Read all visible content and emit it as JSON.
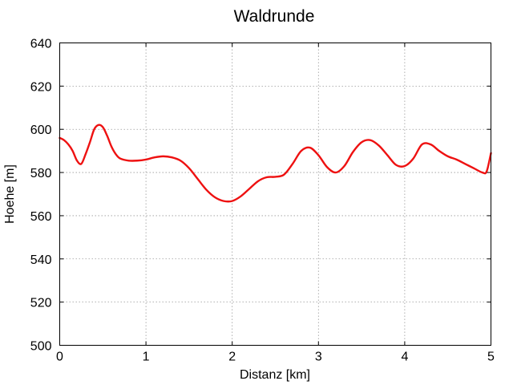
{
  "chart_data": {
    "type": "line",
    "title": "Waldrunde",
    "xlabel": "Distanz [km]",
    "ylabel": "Hoehe [m]",
    "xlim": [
      0,
      5
    ],
    "ylim": [
      500,
      640
    ],
    "xticks": [
      0,
      1,
      2,
      3,
      4,
      5
    ],
    "yticks": [
      500,
      520,
      540,
      560,
      580,
      600,
      620,
      640
    ],
    "grid": true,
    "line_color": "#ee1111",
    "series": [
      {
        "x": [
          0,
          0.05,
          0.1,
          0.15,
          0.2,
          0.25,
          0.3,
          0.35,
          0.4,
          0.45,
          0.5,
          0.55,
          0.6,
          0.65,
          0.7,
          0.8,
          0.9,
          1.0,
          1.1,
          1.2,
          1.3,
          1.4,
          1.5,
          1.6,
          1.7,
          1.8,
          1.9,
          2.0,
          2.1,
          2.2,
          2.3,
          2.4,
          2.5,
          2.6,
          2.7,
          2.8,
          2.9,
          3.0,
          3.1,
          3.2,
          3.3,
          3.4,
          3.5,
          3.6,
          3.7,
          3.8,
          3.9,
          4.0,
          4.1,
          4.2,
          4.3,
          4.4,
          4.5,
          4.6,
          4.7,
          4.8,
          4.9,
          4.95,
          5.0
        ],
        "y": [
          596,
          595,
          593,
          590,
          585.5,
          584,
          588.5,
          594,
          600,
          602,
          601,
          597,
          592,
          588.5,
          586.5,
          585.5,
          585.5,
          586,
          587,
          587.5,
          587,
          585.5,
          582,
          577,
          572,
          568.5,
          566.8,
          566.8,
          569,
          572.5,
          576,
          577.8,
          578,
          579,
          584,
          590,
          591.5,
          588,
          582.5,
          580,
          583,
          589.5,
          594,
          595,
          592.5,
          588,
          583.5,
          583,
          586.5,
          593,
          593,
          590,
          587.5,
          586,
          584,
          582,
          580,
          580.5,
          589
        ]
      }
    ]
  }
}
